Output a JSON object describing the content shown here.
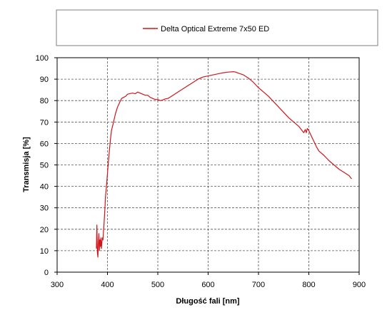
{
  "chart_data": {
    "type": "line",
    "title": "",
    "xlabel": "Długość fali [nm]",
    "ylabel": "Transmisja [%]",
    "xlim": [
      300,
      900
    ],
    "ylim": [
      0,
      100
    ],
    "x_ticks": [
      300,
      400,
      500,
      600,
      700,
      800,
      900
    ],
    "y_ticks": [
      0,
      10,
      20,
      30,
      40,
      50,
      60,
      70,
      80,
      90,
      100
    ],
    "grid": true,
    "legend_position": "top",
    "series": [
      {
        "name": "Delta Optical Extreme 7x50 ED",
        "color": "#d0161c",
        "x": [
          378,
          379,
          380,
          381,
          382,
          383,
          384,
          385,
          386,
          387,
          388,
          389,
          390,
          391,
          392,
          393,
          394,
          395,
          396,
          398,
          400,
          402,
          404,
          406,
          408,
          410,
          413,
          416,
          420,
          424,
          428,
          432,
          436,
          440,
          445,
          450,
          455,
          460,
          465,
          470,
          475,
          480,
          485,
          490,
          495,
          500,
          505,
          510,
          515,
          520,
          525,
          530,
          540,
          550,
          560,
          570,
          580,
          590,
          600,
          610,
          620,
          630,
          640,
          650,
          655,
          660,
          670,
          680,
          690,
          700,
          710,
          720,
          730,
          740,
          750,
          760,
          770,
          780,
          790,
          793,
          795,
          797,
          800,
          805,
          810,
          815,
          820,
          830,
          840,
          850,
          860,
          870,
          880,
          885
        ],
        "y": [
          11,
          22,
          9,
          7,
          14,
          18,
          10,
          15,
          12,
          16,
          11,
          14,
          16,
          15,
          19,
          22,
          26,
          30,
          35,
          40,
          46,
          52,
          57,
          62,
          66,
          68,
          71,
          74,
          77,
          79,
          81,
          81.5,
          82,
          83,
          83.3,
          83.5,
          83.2,
          84,
          83.5,
          83,
          82.5,
          82.5,
          81.5,
          81,
          80.5,
          80.5,
          80,
          80.3,
          80.8,
          81,
          81.7,
          82.5,
          84,
          85.5,
          87,
          88.5,
          90,
          91,
          91.5,
          92,
          92.5,
          93,
          93.3,
          93.5,
          93.3,
          92.8,
          92,
          90.5,
          88.5,
          86,
          84,
          82,
          79.5,
          77,
          74.5,
          72,
          70,
          68,
          65,
          66.5,
          65,
          67,
          66,
          63.5,
          61,
          58.5,
          56.5,
          54.5,
          52,
          50,
          48,
          46.5,
          45,
          43.5
        ]
      }
    ]
  }
}
